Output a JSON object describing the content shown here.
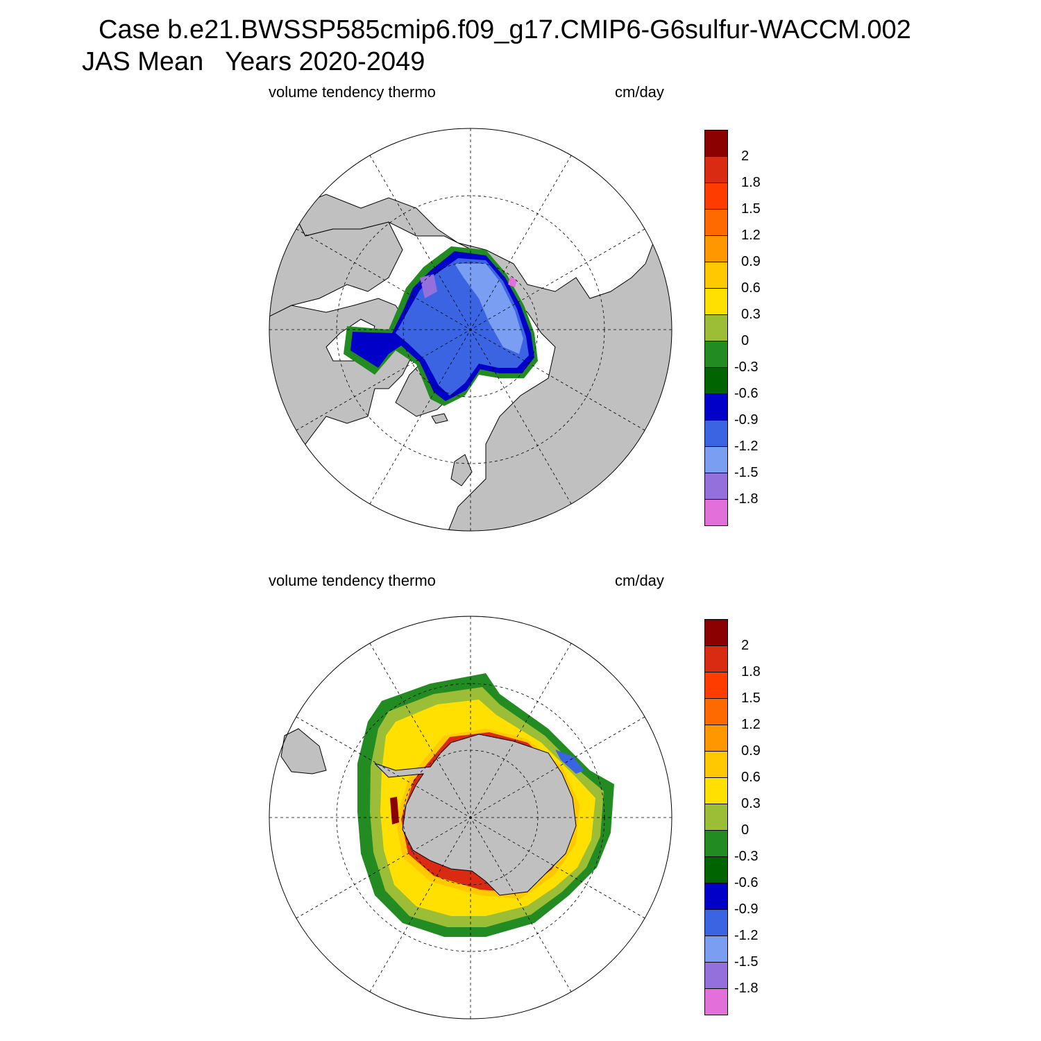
{
  "title": {
    "line1": "Case b.e21.BWSSP585cmip6.f09_g17.CMIP6-G6sulfur-WACCM.002",
    "line2": "JAS Mean   Years 2020-2049"
  },
  "colorbar": {
    "colors": [
      "#e36fdb",
      "#9370db",
      "#7a9ef2",
      "#3b64e3",
      "#0000c8",
      "#006400",
      "#228b22",
      "#9cbd36",
      "#ffe000",
      "#ffc800",
      "#ff9800",
      "#ff6a00",
      "#ff3c00",
      "#d92b12",
      "#8b0000"
    ],
    "labels": [
      "-1.8",
      "-1.5",
      "-1.2",
      "-0.9",
      "-0.6",
      "-0.3",
      "0",
      "0.3",
      "0.6",
      "0.9",
      "1.2",
      "1.5",
      "1.8",
      "2"
    ]
  },
  "panels": [
    {
      "id": "north",
      "hemisphere": "Northern Hemisphere",
      "left_label": "volume tendency thermo",
      "right_label": "cm/day",
      "land_color": "#c0c0c0",
      "ocean_color": "#ffffff"
    },
    {
      "id": "south",
      "hemisphere": "Southern Hemisphere",
      "left_label": "volume tendency thermo",
      "right_label": "cm/day",
      "land_color": "#c0c0c0",
      "ocean_color": "#ffffff"
    }
  ]
}
